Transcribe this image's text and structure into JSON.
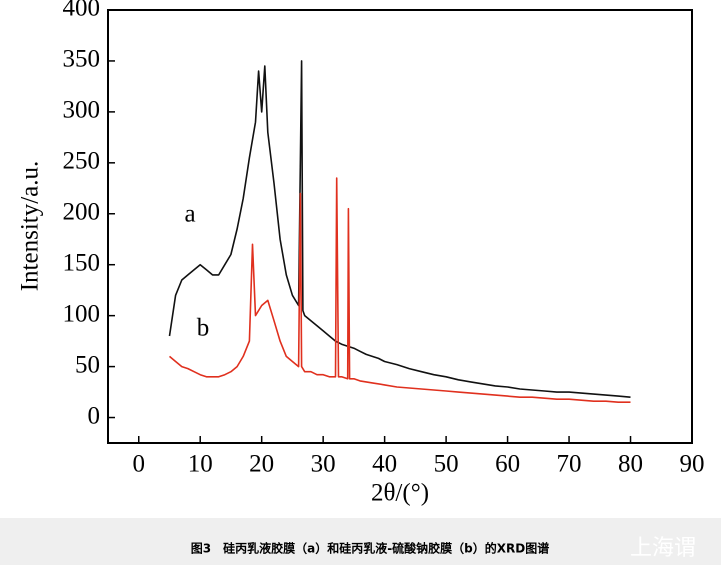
{
  "chart_data": {
    "type": "line",
    "xlabel": "2θ/(°)",
    "ylabel": "Intensity/a.u.",
    "caption": "图3　硅丙乳液胶膜（a）和硅丙乳液-硫酸钠胶膜（b）的XRD图谱",
    "watermark": "上海谓",
    "xlim": [
      -5,
      90
    ],
    "ylim": [
      -25,
      400
    ],
    "xticks": [
      0,
      10,
      20,
      30,
      40,
      50,
      60,
      70,
      80,
      90
    ],
    "yticks": [
      0,
      50,
      100,
      150,
      200,
      250,
      300,
      350,
      400
    ],
    "series": [
      {
        "name": "a",
        "color": "#111111",
        "x": [
          5,
          6,
          7,
          8,
          9,
          10,
          11,
          12,
          13,
          14,
          15,
          16,
          17,
          18,
          19,
          19.5,
          20,
          20.5,
          21,
          22,
          23,
          24,
          25,
          26,
          26.5,
          26.7,
          27,
          28,
          29,
          30,
          31,
          32,
          33,
          34,
          35,
          36,
          37,
          38,
          39,
          40,
          42,
          44,
          46,
          48,
          50,
          52,
          54,
          56,
          58,
          60,
          62,
          64,
          66,
          68,
          70,
          72,
          74,
          76,
          78,
          80
        ],
        "values": [
          80,
          120,
          135,
          140,
          145,
          150,
          145,
          140,
          140,
          150,
          160,
          185,
          215,
          255,
          290,
          340,
          300,
          345,
          280,
          230,
          175,
          140,
          120,
          110,
          350,
          105,
          100,
          95,
          90,
          85,
          80,
          75,
          72,
          70,
          68,
          65,
          62,
          60,
          58,
          55,
          52,
          48,
          45,
          42,
          40,
          37,
          35,
          33,
          31,
          30,
          28,
          27,
          26,
          25,
          25,
          24,
          23,
          22,
          21,
          20
        ]
      },
      {
        "name": "b",
        "color": "#e0301e",
        "x": [
          5,
          6,
          7,
          8,
          9,
          10,
          11,
          12,
          13,
          14,
          15,
          16,
          17,
          18,
          18.5,
          19,
          20,
          21,
          22,
          23,
          24,
          25,
          26,
          26.3,
          26.5,
          27,
          28,
          29,
          30,
          31,
          32,
          32.2,
          32.5,
          33,
          34,
          34.1,
          34.3,
          35,
          36,
          38,
          40,
          42,
          44,
          46,
          48,
          50,
          52,
          54,
          56,
          58,
          60,
          62,
          64,
          66,
          68,
          70,
          72,
          74,
          76,
          78,
          80
        ],
        "values": [
          60,
          55,
          50,
          48,
          45,
          42,
          40,
          40,
          40,
          42,
          45,
          50,
          60,
          75,
          170,
          100,
          110,
          115,
          95,
          75,
          60,
          55,
          50,
          220,
          50,
          45,
          45,
          42,
          42,
          40,
          40,
          235,
          40,
          40,
          38,
          205,
          38,
          38,
          36,
          34,
          32,
          30,
          29,
          28,
          27,
          26,
          25,
          24,
          23,
          22,
          21,
          20,
          20,
          19,
          18,
          18,
          17,
          16,
          16,
          15,
          15
        ]
      }
    ]
  }
}
